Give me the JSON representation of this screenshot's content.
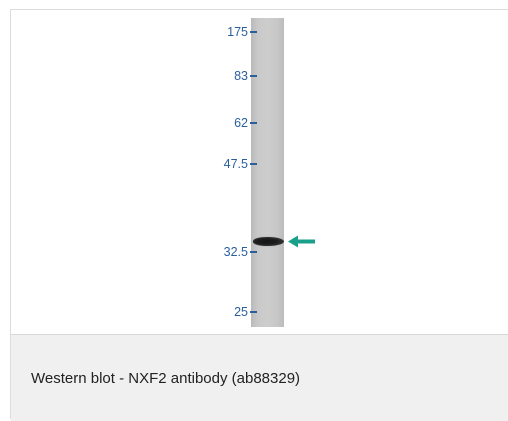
{
  "image": {
    "markers": [
      {
        "label": "175"
      },
      {
        "label": "83"
      },
      {
        "label": "62"
      },
      {
        "label": "47.5"
      },
      {
        "label": "32.5"
      },
      {
        "label": "25"
      }
    ],
    "arrow_color": "#1aa08a",
    "marker_color": "#2a5f9b"
  },
  "caption": {
    "text": "Western blot - NXF2 antibody (ab88329)"
  }
}
